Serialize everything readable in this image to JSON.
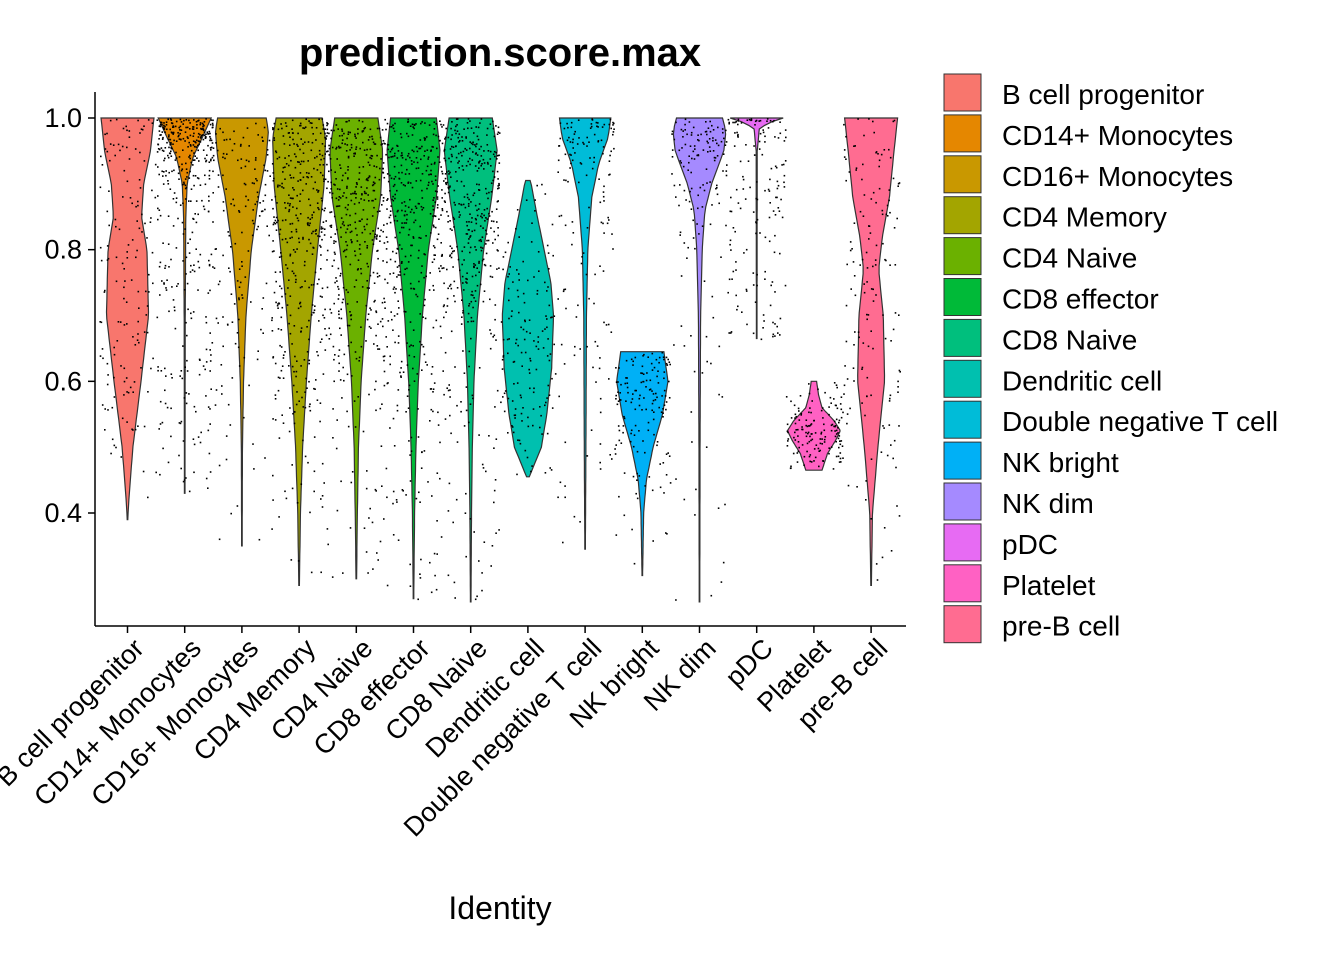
{
  "chart_data": {
    "type": "violin",
    "title": "prediction.score.max",
    "xlabel": "Identity",
    "ylabel": "",
    "ylim": [
      0.25,
      1.02
    ],
    "yticks": [
      0.4,
      0.6,
      0.8,
      1.0
    ],
    "ytick_labels": [
      "0.4",
      "0.6",
      "0.8",
      "1.0"
    ],
    "legend_position": "right",
    "grid": false,
    "categories": [
      "B cell progenitor",
      "CD14+ Monocytes",
      "CD16+ Monocytes",
      "CD4 Memory",
      "CD4 Naive",
      "CD8 effector",
      "CD8 Naive",
      "Dendritic cell",
      "Double negative T cell",
      "NK bright",
      "NK dim",
      "pDC",
      "Platelet",
      "pre-B cell"
    ],
    "xtick_labels": [
      "B cell progenitor",
      "CD14+ Monocytes",
      "CD16+ Monocytes",
      "CD4 Memory",
      "CD4 Naive",
      "CD8 effector",
      "CD8 Naive",
      "Dendritic cell",
      "Double negative T cell",
      "NK bright",
      "NK dim",
      "pDC",
      "Platelet",
      "pre-B cell"
    ],
    "colors": [
      "#F8766D",
      "#E58700",
      "#C99800",
      "#A3A500",
      "#6BB100",
      "#00BA38",
      "#00BF7D",
      "#00C0AF",
      "#00BCD8",
      "#00B0F6",
      "#A58AFF",
      "#E76BF3",
      "#FF61C3",
      "#FF6C91"
    ],
    "series": [
      {
        "name": "B cell progenitor",
        "min": 0.39,
        "max": 1.0,
        "profile": [
          [
            0.39,
            0.01
          ],
          [
            0.42,
            0.05
          ],
          [
            0.5,
            0.2
          ],
          [
            0.6,
            0.5
          ],
          [
            0.7,
            0.78
          ],
          [
            0.8,
            0.72
          ],
          [
            0.85,
            0.52
          ],
          [
            0.9,
            0.6
          ],
          [
            0.95,
            0.85
          ],
          [
            1.0,
            0.98
          ]
        ]
      },
      {
        "name": "CD14+ Monocytes",
        "min": 0.43,
        "max": 1.0,
        "profile": [
          [
            0.43,
            0.01
          ],
          [
            0.7,
            0.02
          ],
          [
            0.85,
            0.04
          ],
          [
            0.9,
            0.09
          ],
          [
            0.94,
            0.3
          ],
          [
            0.97,
            0.65
          ],
          [
            1.0,
            0.98
          ]
        ]
      },
      {
        "name": "CD16+ Monocytes",
        "min": 0.35,
        "max": 1.0,
        "profile": [
          [
            0.35,
            0.01
          ],
          [
            0.5,
            0.02
          ],
          [
            0.6,
            0.06
          ],
          [
            0.7,
            0.15
          ],
          [
            0.8,
            0.35
          ],
          [
            0.88,
            0.62
          ],
          [
            0.94,
            0.9
          ],
          [
            0.98,
            0.98
          ],
          [
            1.0,
            0.9
          ]
        ]
      },
      {
        "name": "CD4 Memory",
        "min": 0.29,
        "max": 1.0,
        "profile": [
          [
            0.29,
            0.01
          ],
          [
            0.4,
            0.05
          ],
          [
            0.5,
            0.13
          ],
          [
            0.6,
            0.27
          ],
          [
            0.7,
            0.45
          ],
          [
            0.8,
            0.68
          ],
          [
            0.9,
            0.93
          ],
          [
            0.97,
            0.98
          ],
          [
            1.0,
            0.85
          ]
        ]
      },
      {
        "name": "CD4 Naive",
        "min": 0.3,
        "max": 1.0,
        "profile": [
          [
            0.3,
            0.01
          ],
          [
            0.4,
            0.04
          ],
          [
            0.5,
            0.08
          ],
          [
            0.6,
            0.18
          ],
          [
            0.7,
            0.35
          ],
          [
            0.8,
            0.6
          ],
          [
            0.88,
            0.9
          ],
          [
            0.95,
            0.98
          ],
          [
            1.0,
            0.8
          ]
        ]
      },
      {
        "name": "CD8 effector",
        "min": 0.27,
        "max": 1.0,
        "profile": [
          [
            0.27,
            0.01
          ],
          [
            0.4,
            0.04
          ],
          [
            0.5,
            0.09
          ],
          [
            0.6,
            0.18
          ],
          [
            0.7,
            0.33
          ],
          [
            0.8,
            0.55
          ],
          [
            0.88,
            0.85
          ],
          [
            0.95,
            0.98
          ],
          [
            1.0,
            0.85
          ]
        ]
      },
      {
        "name": "CD8 Naive",
        "min": 0.265,
        "max": 1.0,
        "profile": [
          [
            0.265,
            0.01
          ],
          [
            0.4,
            0.03
          ],
          [
            0.5,
            0.06
          ],
          [
            0.6,
            0.12
          ],
          [
            0.7,
            0.25
          ],
          [
            0.8,
            0.48
          ],
          [
            0.88,
            0.78
          ],
          [
            0.95,
            0.98
          ],
          [
            1.0,
            0.8
          ]
        ]
      },
      {
        "name": "Dendritic cell",
        "min": 0.455,
        "max": 0.905,
        "profile": [
          [
            0.455,
            0.05
          ],
          [
            0.5,
            0.5
          ],
          [
            0.55,
            0.7
          ],
          [
            0.62,
            0.88
          ],
          [
            0.7,
            0.95
          ],
          [
            0.75,
            0.85
          ],
          [
            0.8,
            0.6
          ],
          [
            0.85,
            0.35
          ],
          [
            0.9,
            0.12
          ],
          [
            0.905,
            0.08
          ]
        ]
      },
      {
        "name": "Double negative T cell",
        "min": 0.345,
        "max": 1.0,
        "profile": [
          [
            0.345,
            0.01
          ],
          [
            0.5,
            0.03
          ],
          [
            0.7,
            0.05
          ],
          [
            0.8,
            0.1
          ],
          [
            0.88,
            0.25
          ],
          [
            0.93,
            0.5
          ],
          [
            0.97,
            0.85
          ],
          [
            1.0,
            0.95
          ]
        ]
      },
      {
        "name": "NK bright",
        "min": 0.305,
        "max": 0.645,
        "profile": [
          [
            0.305,
            0.01
          ],
          [
            0.4,
            0.05
          ],
          [
            0.45,
            0.15
          ],
          [
            0.5,
            0.4
          ],
          [
            0.55,
            0.75
          ],
          [
            0.6,
            0.95
          ],
          [
            0.645,
            0.8
          ]
        ]
      },
      {
        "name": "NK dim",
        "min": 0.265,
        "max": 1.0,
        "profile": [
          [
            0.265,
            0.01
          ],
          [
            0.5,
            0.02
          ],
          [
            0.7,
            0.04
          ],
          [
            0.8,
            0.1
          ],
          [
            0.86,
            0.2
          ],
          [
            0.9,
            0.45
          ],
          [
            0.95,
            0.9
          ],
          [
            0.98,
            0.98
          ],
          [
            1.0,
            0.85
          ]
        ]
      },
      {
        "name": "pDC",
        "min": 0.665,
        "max": 1.0,
        "profile": [
          [
            0.665,
            0.01
          ],
          [
            0.95,
            0.02
          ],
          [
            0.985,
            0.1
          ],
          [
            0.995,
            0.6
          ],
          [
            1.0,
            0.98
          ]
        ]
      },
      {
        "name": "Platelet",
        "min": 0.465,
        "max": 0.6,
        "profile": [
          [
            0.465,
            0.3
          ],
          [
            0.49,
            0.5
          ],
          [
            0.51,
            0.8
          ],
          [
            0.525,
            0.98
          ],
          [
            0.54,
            0.75
          ],
          [
            0.56,
            0.3
          ],
          [
            0.58,
            0.17
          ],
          [
            0.6,
            0.1
          ]
        ]
      },
      {
        "name": "pre-B cell",
        "min": 0.29,
        "max": 1.0,
        "profile": [
          [
            0.29,
            0.01
          ],
          [
            0.4,
            0.05
          ],
          [
            0.5,
            0.25
          ],
          [
            0.6,
            0.5
          ],
          [
            0.7,
            0.45
          ],
          [
            0.77,
            0.28
          ],
          [
            0.82,
            0.42
          ],
          [
            0.88,
            0.68
          ],
          [
            0.95,
            0.85
          ],
          [
            1.0,
            0.98
          ]
        ]
      }
    ]
  }
}
